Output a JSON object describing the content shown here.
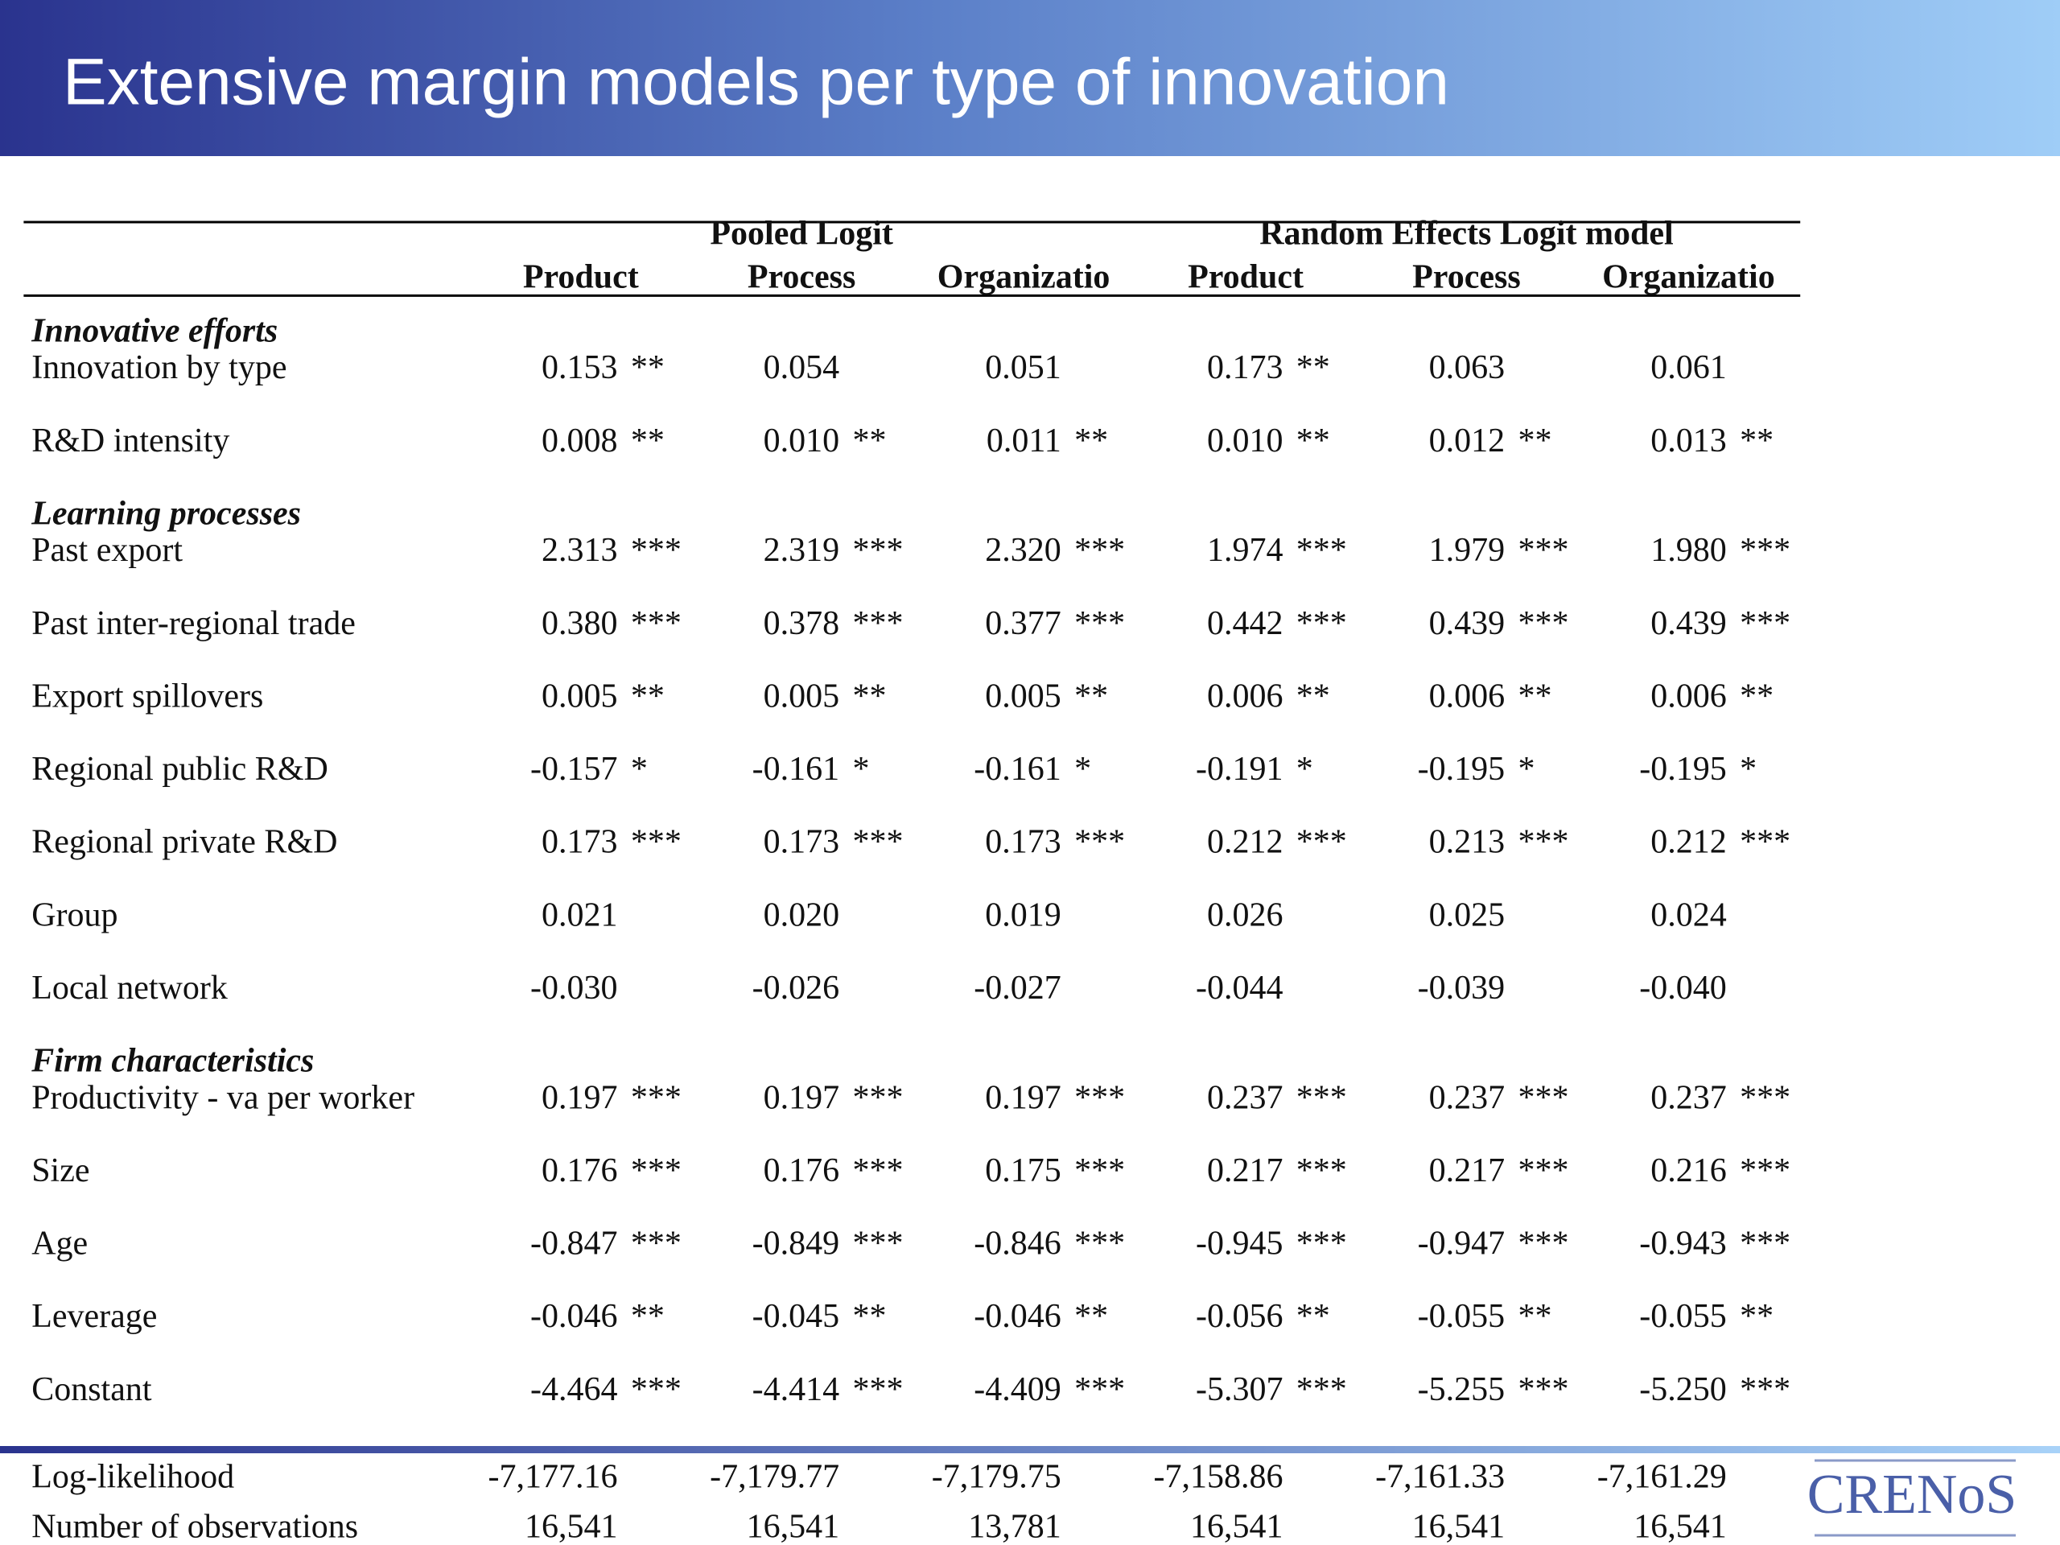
{
  "header": {
    "title": "Extensive margin models per type of innovation"
  },
  "table": {
    "groups": [
      "Pooled Logit",
      "Random Effects Logit model"
    ],
    "columns": [
      "Product",
      "Process",
      "Organizatio",
      "Product",
      "Process",
      "Organizatio"
    ],
    "sections": [
      {
        "title": "Innovative efforts",
        "rows": [
          {
            "label": "Innovation by type",
            "cells": [
              [
                "0.153",
                "**"
              ],
              [
                "0.054"
              ],
              [
                "0.051"
              ],
              [
                "0.173",
                "**"
              ],
              [
                "0.063"
              ],
              [
                "0.061"
              ]
            ]
          },
          {
            "label": "R&D intensity",
            "cells": [
              [
                "0.008",
                "**"
              ],
              [
                "0.010",
                "**"
              ],
              [
                "0.011",
                "**"
              ],
              [
                "0.010",
                "**"
              ],
              [
                "0.012",
                "**"
              ],
              [
                "0.013",
                "**"
              ]
            ]
          }
        ]
      },
      {
        "title": "Learning processes",
        "rows": [
          {
            "label": "Past export",
            "cells": [
              [
                "2.313",
                "***"
              ],
              [
                "2.319",
                "***"
              ],
              [
                "2.320",
                "***"
              ],
              [
                "1.974",
                "***"
              ],
              [
                "1.979",
                "***"
              ],
              [
                "1.980",
                "***"
              ]
            ]
          },
          {
            "label": "Past inter-regional trade",
            "cells": [
              [
                "0.380",
                "***"
              ],
              [
                "0.378",
                "***"
              ],
              [
                "0.377",
                "***"
              ],
              [
                "0.442",
                "***"
              ],
              [
                "0.439",
                "***"
              ],
              [
                "0.439",
                "***"
              ]
            ]
          },
          {
            "label": "Export spillovers",
            "cells": [
              [
                "0.005",
                "**"
              ],
              [
                "0.005",
                "**"
              ],
              [
                "0.005",
                "**"
              ],
              [
                "0.006",
                "**"
              ],
              [
                "0.006",
                "**"
              ],
              [
                "0.006",
                "**"
              ]
            ]
          },
          {
            "label": "Regional public R&D",
            "cells": [
              [
                "-0.157",
                "*"
              ],
              [
                "-0.161",
                "*"
              ],
              [
                "-0.161",
                "*"
              ],
              [
                "-0.191",
                "*"
              ],
              [
                "-0.195",
                "*"
              ],
              [
                "-0.195",
                "*"
              ]
            ]
          },
          {
            "label": "Regional private R&D",
            "cells": [
              [
                "0.173",
                "***"
              ],
              [
                "0.173",
                "***"
              ],
              [
                "0.173",
                "***"
              ],
              [
                "0.212",
                "***"
              ],
              [
                "0.213",
                "***"
              ],
              [
                "0.212",
                "***"
              ]
            ]
          },
          {
            "label": "Group",
            "cells": [
              [
                "0.021"
              ],
              [
                "0.020"
              ],
              [
                "0.019"
              ],
              [
                "0.026"
              ],
              [
                "0.025"
              ],
              [
                "0.024"
              ]
            ]
          },
          {
            "label": "Local network",
            "cells": [
              [
                "-0.030"
              ],
              [
                "-0.026"
              ],
              [
                "-0.027"
              ],
              [
                "-0.044"
              ],
              [
                "-0.039"
              ],
              [
                "-0.040"
              ]
            ]
          }
        ]
      },
      {
        "title": "Firm characteristics",
        "rows": [
          {
            "label": "Productivity - va per worker",
            "cells": [
              [
                "0.197",
                "***"
              ],
              [
                "0.197",
                "***"
              ],
              [
                "0.197",
                "***"
              ],
              [
                "0.237",
                "***"
              ],
              [
                "0.237",
                "***"
              ],
              [
                "0.237",
                "***"
              ]
            ]
          },
          {
            "label": "Size",
            "cells": [
              [
                "0.176",
                "***"
              ],
              [
                "0.176",
                "***"
              ],
              [
                "0.175",
                "***"
              ],
              [
                "0.217",
                "***"
              ],
              [
                "0.217",
                "***"
              ],
              [
                "0.216",
                "***"
              ]
            ]
          },
          {
            "label": "Age",
            "cells": [
              [
                "-0.847",
                "***"
              ],
              [
                "-0.849",
                "***"
              ],
              [
                "-0.846",
                "***"
              ],
              [
                "-0.945",
                "***"
              ],
              [
                "-0.947",
                "***"
              ],
              [
                "-0.943",
                "***"
              ]
            ]
          },
          {
            "label": "Leverage",
            "cells": [
              [
                "-0.046",
                "**"
              ],
              [
                "-0.045",
                "**"
              ],
              [
                "-0.046",
                "**"
              ],
              [
                "-0.056",
                "**"
              ],
              [
                "-0.055",
                "**"
              ],
              [
                "-0.055",
                "**"
              ]
            ]
          },
          {
            "label": "Constant",
            "cells": [
              [
                "-4.464",
                "***"
              ],
              [
                "-4.414",
                "***"
              ],
              [
                "-4.409",
                "***"
              ],
              [
                "-5.307",
                "***"
              ],
              [
                "-5.255",
                "***"
              ],
              [
                "-5.250",
                "***"
              ]
            ]
          }
        ]
      }
    ],
    "footer": [
      {
        "label": "Log-likelihood",
        "cells": [
          "-7,177.16",
          "-7,179.77",
          "-7,179.75",
          "-7,158.86",
          "-7,161.33",
          "-7,161.29"
        ]
      },
      {
        "label": "Number of observations",
        "cells": [
          "16,541",
          "16,541",
          "13,781",
          "16,541",
          "16,541",
          "16,541"
        ]
      }
    ]
  },
  "logo": "CRENoS"
}
